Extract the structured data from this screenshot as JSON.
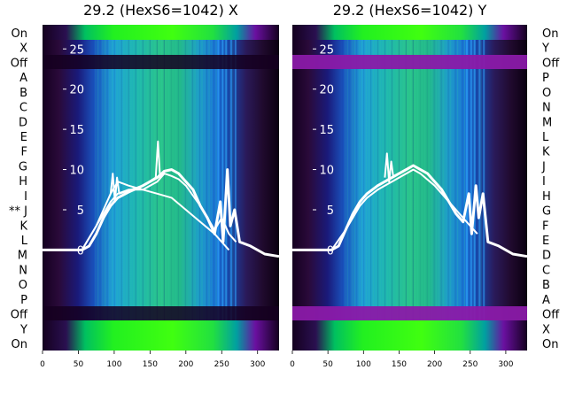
{
  "chart_data": [
    {
      "type": "heatmap",
      "title": "29.2 (HexS6=1042) X",
      "x_ticks": [
        0,
        50,
        100,
        150,
        200,
        250,
        300
      ],
      "xlim": [
        0,
        330
      ],
      "y_ticks": [
        0,
        5,
        10,
        15,
        20,
        25
      ],
      "ylim": [
        -12.5,
        28
      ],
      "row_labels": [
        "On",
        "X",
        "Off",
        "A",
        "B",
        "C",
        "D",
        "E",
        "F",
        "G",
        "H",
        "I",
        "** J",
        "K",
        "L",
        "M",
        "N",
        "O",
        "P",
        "Off",
        "Y",
        "On"
      ],
      "grid": false,
      "series": [
        {
          "x": [
            0,
            55,
            65,
            75,
            85,
            95,
            105,
            120,
            140,
            160,
            170,
            180,
            190,
            200,
            210,
            220,
            230,
            240,
            248,
            252,
            258,
            262,
            268,
            275,
            290,
            310,
            330
          ],
          "y": [
            0,
            0,
            0.5,
            2,
            4,
            5.5,
            6.5,
            7.2,
            8,
            9,
            9.8,
            10,
            9.5,
            8.5,
            7.5,
            5.5,
            4,
            2,
            6,
            1,
            10,
            3,
            5,
            1,
            0.5,
            -0.5,
            -0.8
          ]
        },
        {
          "x": [
            55,
            75,
            95,
            105,
            120,
            140,
            150,
            160,
            170,
            180,
            190,
            200,
            220,
            240,
            250,
            260,
            270
          ],
          "y": [
            0,
            3,
            6,
            7,
            7.5,
            7.5,
            8,
            8.5,
            9.5,
            9.2,
            8.8,
            8,
            5.5,
            2.5,
            4,
            2,
            1
          ]
        },
        {
          "x": [
            55,
            75,
            95,
            105,
            120,
            140,
            160,
            180,
            200,
            220,
            240,
            260
          ],
          "y": [
            0,
            3,
            7,
            8.5,
            8,
            7.5,
            7,
            6.5,
            5,
            3.5,
            2,
            0
          ]
        },
        {
          "x": [
            95,
            98,
            101,
            104,
            107,
            140,
            158,
            161,
            164,
            170
          ],
          "y": [
            7,
            9.5,
            6,
            9,
            7,
            8,
            9,
            13.5,
            9,
            9.5
          ]
        }
      ]
    },
    {
      "type": "heatmap",
      "title": "29.2 (HexS6=1042) Y",
      "x_ticks": [
        0,
        50,
        100,
        150,
        200,
        250,
        300
      ],
      "xlim": [
        0,
        330
      ],
      "y_ticks": [
        0,
        5,
        10,
        15,
        20,
        25
      ],
      "ylim": [
        -12.5,
        28
      ],
      "row_labels": [
        "On",
        "Y",
        "Off",
        "P",
        "O",
        "N",
        "M",
        "L",
        "K",
        "J",
        "I",
        "H",
        "G",
        "F",
        "E",
        "D",
        "C",
        "B",
        "A",
        "Off",
        "X",
        "On"
      ],
      "grid": false,
      "series": [
        {
          "x": [
            0,
            55,
            65,
            75,
            85,
            95,
            105,
            120,
            140,
            160,
            170,
            180,
            190,
            200,
            210,
            220,
            230,
            240,
            248,
            252,
            258,
            262,
            268,
            275,
            290,
            310,
            330
          ],
          "y": [
            0,
            0,
            0.5,
            2.5,
            4.5,
            6,
            7,
            8,
            9,
            10,
            10.5,
            10,
            9.5,
            8.5,
            7.5,
            6,
            4.5,
            3.5,
            7,
            2,
            8,
            4,
            7,
            1,
            0.5,
            -0.5,
            -0.8
          ]
        },
        {
          "x": [
            55,
            75,
            95,
            105,
            120,
            140,
            160,
            170,
            180,
            200,
            220,
            240,
            260
          ],
          "y": [
            0,
            2.5,
            5.5,
            6.5,
            7.5,
            8.5,
            9.5,
            10,
            9.5,
            8,
            6,
            4,
            2
          ]
        },
        {
          "x": [
            130,
            133,
            136,
            139,
            142
          ],
          "y": [
            9,
            12,
            8.5,
            11,
            9
          ]
        }
      ]
    }
  ]
}
